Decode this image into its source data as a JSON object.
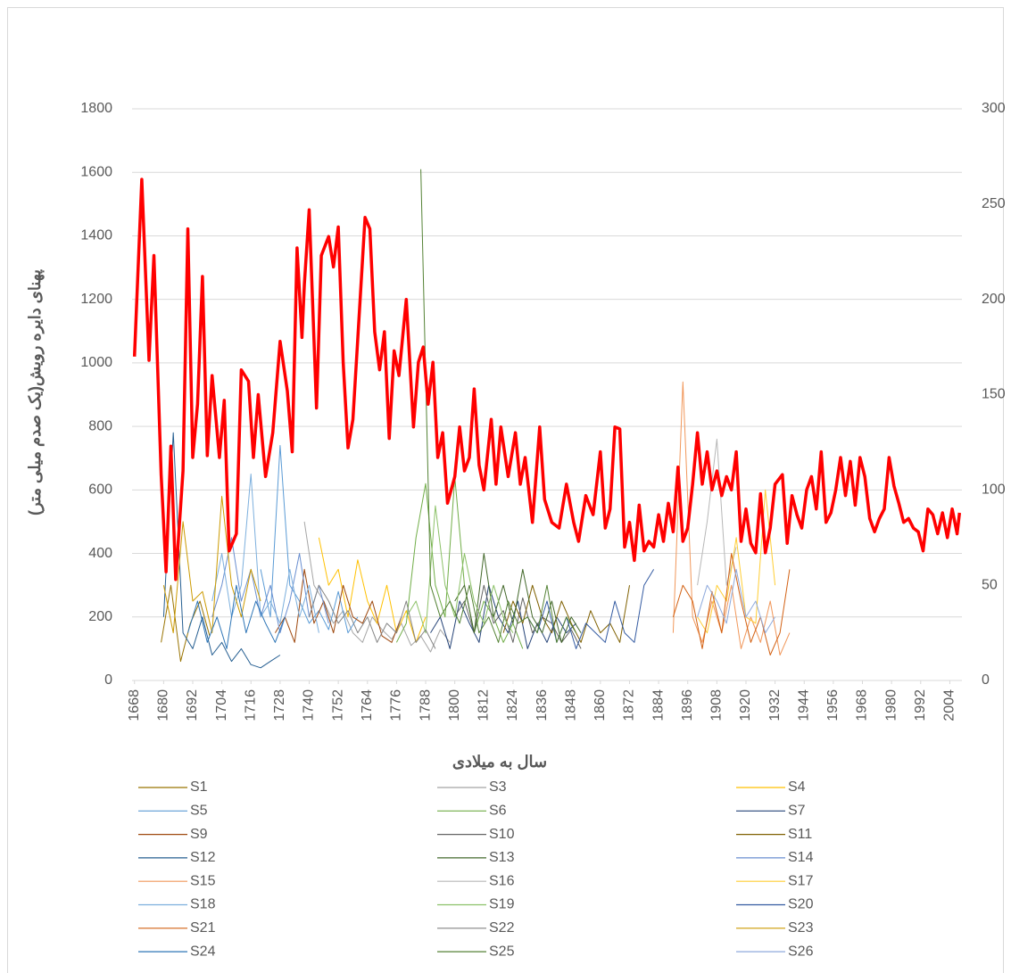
{
  "chart_data": {
    "type": "line",
    "y_label": "پهنای دایره رویش(یک صدم میلی متر)",
    "x_label": "سال به میلادی",
    "xlim": [
      1667,
      2009
    ],
    "xticks": [
      1668,
      1680,
      1692,
      1704,
      1716,
      1728,
      1740,
      1752,
      1764,
      1776,
      1788,
      1800,
      1812,
      1824,
      1836,
      1848,
      1860,
      1872,
      1884,
      1896,
      1908,
      1920,
      1932,
      1944,
      1956,
      1968,
      1980,
      1992,
      2004
    ],
    "ylim": [
      0,
      1800
    ],
    "yticks": [
      0,
      200,
      400,
      600,
      800,
      1000,
      1200,
      1400,
      1600,
      1800
    ],
    "y2lim": [
      0,
      300
    ],
    "y2ticks": [
      0,
      50,
      100,
      150,
      200,
      250,
      300
    ],
    "grid": true,
    "series": [
      {
        "name": "S1",
        "color": "#997300",
        "x": [
          1679,
          1683,
          1687,
          1691,
          1695,
          1699
        ],
        "values": [
          120,
          300,
          60,
          180,
          250,
          140
        ]
      },
      {
        "name": "S3",
        "color": "#a5a5a5",
        "x": [
          1738,
          1742,
          1746,
          1750,
          1754,
          1758,
          1762,
          1766,
          1770,
          1774,
          1778,
          1782,
          1786,
          1790,
          1794,
          1798
        ],
        "values": [
          500,
          300,
          250,
          180,
          220,
          150,
          120,
          200,
          160,
          130,
          180,
          110,
          140,
          90,
          160,
          120
        ]
      },
      {
        "name": "S4",
        "color": "#ffc000",
        "x": [
          1744,
          1748,
          1752,
          1756,
          1760,
          1764,
          1768,
          1772,
          1776,
          1780,
          1784,
          1788
        ],
        "values": [
          450,
          300,
          350,
          200,
          380,
          250,
          180,
          300,
          150,
          220,
          120,
          200
        ]
      },
      {
        "name": "S5",
        "color": "#5b9bd5",
        "x": [
          1720,
          1724,
          1728,
          1732,
          1736,
          1740,
          1744,
          1748,
          1752,
          1756,
          1760
        ],
        "values": [
          350,
          200,
          740,
          300,
          250,
          180,
          220,
          160,
          280,
          150,
          200
        ]
      },
      {
        "name": "S6",
        "color": "#70ad47",
        "x": [
          1776,
          1780,
          1784,
          1788,
          1792,
          1796,
          1800,
          1804,
          1808,
          1812,
          1816,
          1820,
          1824,
          1828
        ],
        "values": [
          120,
          180,
          450,
          620,
          300,
          200,
          640,
          300,
          150,
          250,
          200,
          120,
          180,
          100
        ]
      },
      {
        "name": "S7",
        "color": "#264478",
        "x": [
          1790,
          1794,
          1798,
          1802,
          1806,
          1810,
          1814,
          1818,
          1822,
          1826,
          1830,
          1834,
          1838,
          1842,
          1846,
          1850
        ],
        "values": [
          150,
          200,
          100,
          250,
          180,
          120,
          300,
          200,
          150,
          250,
          100,
          180,
          120,
          200,
          150,
          180
        ]
      },
      {
        "name": "S9",
        "color": "#9e480e",
        "x": [
          1726,
          1730,
          1734,
          1738,
          1742,
          1746,
          1750,
          1754,
          1758,
          1762,
          1766,
          1770,
          1774,
          1778
        ],
        "values": [
          150,
          200,
          120,
          350,
          180,
          250,
          150,
          300,
          200,
          180,
          250,
          140,
          120,
          200
        ]
      },
      {
        "name": "S10",
        "color": "#636363",
        "x": [
          1800,
          1804,
          1808,
          1812,
          1816,
          1820,
          1824,
          1828,
          1832,
          1836,
          1840,
          1844,
          1848,
          1852
        ],
        "values": [
          200,
          250,
          150,
          300,
          180,
          220,
          120,
          260,
          150,
          200,
          180,
          120,
          160,
          100
        ]
      },
      {
        "name": "S11",
        "color": "#7f6000",
        "x": [
          1820,
          1824,
          1828,
          1832,
          1836,
          1840,
          1844,
          1848,
          1852,
          1856,
          1860,
          1864,
          1868,
          1872
        ],
        "values": [
          150,
          250,
          180,
          300,
          200,
          150,
          250,
          180,
          120,
          220,
          150,
          180,
          120,
          300
        ]
      },
      {
        "name": "S12",
        "color": "#255e91",
        "x": [
          1680,
          1684,
          1688,
          1692,
          1696,
          1700,
          1704,
          1708,
          1712,
          1716,
          1720,
          1724,
          1728
        ],
        "values": [
          200,
          780,
          150,
          100,
          200,
          80,
          120,
          60,
          100,
          50,
          40,
          60,
          80
        ]
      },
      {
        "name": "S13",
        "color": "#43682b",
        "x": [
          1800,
          1804,
          1808,
          1812,
          1816,
          1820,
          1824,
          1828,
          1832,
          1836,
          1840,
          1844,
          1848,
          1852
        ],
        "values": [
          250,
          300,
          150,
          400,
          200,
          300,
          180,
          350,
          200,
          150,
          250,
          120,
          200,
          150
        ]
      },
      {
        "name": "S14",
        "color": "#698ed0",
        "x": [
          1700,
          1704,
          1708,
          1712,
          1716,
          1720,
          1724,
          1728,
          1732,
          1736,
          1740,
          1744,
          1748
        ],
        "values": [
          200,
          300,
          450,
          250,
          350,
          200,
          300,
          150,
          250,
          400,
          200,
          300,
          180
        ]
      },
      {
        "name": "S15",
        "color": "#f1975a",
        "x": [
          1890,
          1894,
          1898,
          1902,
          1906,
          1910,
          1914,
          1918,
          1922,
          1926,
          1930,
          1934,
          1938
        ],
        "values": [
          150,
          940,
          200,
          120,
          250,
          150,
          300,
          100,
          200,
          120,
          250,
          80,
          150
        ]
      },
      {
        "name": "S16",
        "color": "#b7b7b7",
        "x": [
          1900,
          1904,
          1908,
          1912,
          1916
        ],
        "values": [
          300,
          500,
          760,
          300,
          420
        ]
      },
      {
        "name": "S17",
        "color": "#ffcd33",
        "x": [
          1900,
          1904,
          1908,
          1912,
          1916,
          1920,
          1924,
          1928,
          1932
        ],
        "values": [
          200,
          150,
          300,
          250,
          450,
          200,
          180,
          600,
          300
        ]
      },
      {
        "name": "S18",
        "color": "#7cafdd",
        "x": [
          1700,
          1704,
          1708,
          1712,
          1716,
          1720,
          1724,
          1728,
          1732,
          1736,
          1740,
          1744
        ],
        "values": [
          250,
          400,
          200,
          300,
          650,
          200,
          250,
          180,
          350,
          200,
          300,
          150
        ]
      },
      {
        "name": "S19",
        "color": "#8cc168",
        "x": [
          1780,
          1784,
          1788,
          1792,
          1796,
          1800,
          1804,
          1808,
          1812,
          1816,
          1820,
          1824
        ],
        "values": [
          200,
          250,
          150,
          550,
          300,
          200,
          400,
          250,
          180,
          300,
          200,
          150
        ]
      },
      {
        "name": "S20",
        "color": "#335aa1",
        "x": [
          1830,
          1834,
          1838,
          1842,
          1846,
          1850,
          1854,
          1858,
          1862,
          1866,
          1870,
          1874,
          1878,
          1882
        ],
        "values": [
          200,
          150,
          250,
          120,
          200,
          100,
          180,
          150,
          120,
          250,
          150,
          120,
          300,
          350
        ]
      },
      {
        "name": "S21",
        "color": "#d26012",
        "x": [
          1890,
          1894,
          1898,
          1902,
          1906,
          1910,
          1914,
          1918,
          1922,
          1926,
          1930,
          1934,
          1938
        ],
        "values": [
          200,
          300,
          250,
          100,
          280,
          150,
          400,
          250,
          120,
          200,
          80,
          150,
          350
        ]
      },
      {
        "name": "S22",
        "color": "#848484",
        "x": [
          1740,
          1744,
          1748,
          1752,
          1756,
          1760,
          1764,
          1768,
          1772,
          1776,
          1780,
          1784,
          1788,
          1792
        ],
        "values": [
          200,
          300,
          250,
          180,
          220,
          150,
          200,
          120,
          180,
          150,
          250,
          120,
          160,
          100
        ]
      },
      {
        "name": "S23",
        "color": "#cc9a00",
        "x": [
          1680,
          1684,
          1688,
          1692,
          1696,
          1700,
          1704,
          1708,
          1712,
          1716,
          1720
        ],
        "values": [
          300,
          150,
          500,
          250,
          280,
          150,
          580,
          300,
          200,
          350,
          250
        ]
      },
      {
        "name": "S24",
        "color": "#2e75b6",
        "x": [
          1690,
          1694,
          1698,
          1702,
          1706,
          1710,
          1714,
          1718,
          1722,
          1726,
          1730
        ],
        "values": [
          150,
          250,
          120,
          200,
          100,
          300,
          150,
          250,
          180,
          120,
          200
        ]
      },
      {
        "name": "S25",
        "color": "#548235",
        "x": [
          1786,
          1790,
          1794,
          1798,
          1802,
          1806,
          1810,
          1814,
          1818,
          1822,
          1826,
          1830,
          1834,
          1838,
          1842,
          1846,
          1850
        ],
        "values": [
          1610,
          300,
          200,
          250,
          180,
          300,
          150,
          200,
          120,
          250,
          180,
          200,
          150,
          300,
          120,
          200,
          150
        ]
      },
      {
        "name": "S26",
        "color": "#8faadc",
        "x": [
          1900,
          1904,
          1908,
          1912,
          1916,
          1920,
          1924,
          1928,
          1932
        ],
        "values": [
          200,
          300,
          250,
          180,
          350,
          200,
          250,
          150,
          200
        ]
      },
      {
        "color": "#ff0000",
        "axis": "y2",
        "x": [
          1668,
          1671,
          1674,
          1676,
          1679,
          1681,
          1683,
          1685,
          1688,
          1690,
          1692,
          1694,
          1696,
          1698,
          1700,
          1703,
          1705,
          1707,
          1710,
          1712,
          1715,
          1717,
          1719,
          1722,
          1725,
          1728,
          1731,
          1733,
          1735,
          1737,
          1738,
          1740,
          1743,
          1745,
          1748,
          1750,
          1752,
          1754,
          1756,
          1758,
          1761,
          1763,
          1765,
          1767,
          1769,
          1771,
          1773,
          1775,
          1777,
          1780,
          1783,
          1785,
          1787,
          1789,
          1791,
          1793,
          1795,
          1797,
          1800,
          1802,
          1804,
          1806,
          1808,
          1810,
          1812,
          1815,
          1817,
          1819,
          1822,
          1825,
          1827,
          1829,
          1832,
          1835,
          1837,
          1840,
          1843,
          1846,
          1849,
          1851,
          1854,
          1857,
          1860,
          1862,
          1864,
          1866,
          1868,
          1870,
          1872,
          1874,
          1876,
          1878,
          1880,
          1882,
          1884,
          1886,
          1888,
          1890,
          1892,
          1894,
          1896,
          1898,
          1900,
          1902,
          1904,
          1906,
          1908,
          1910,
          1912,
          1914,
          1916,
          1918,
          1920,
          1922,
          1924,
          1926,
          1928,
          1930,
          1932,
          1935,
          1937,
          1939,
          1941,
          1943,
          1945,
          1947,
          1949,
          1951,
          1953,
          1955,
          1957,
          1959,
          1961,
          1963,
          1965,
          1967,
          1969,
          1971,
          1973,
          1975,
          1977,
          1979,
          1981,
          1983,
          1985,
          1987,
          1989,
          1991,
          1993,
          1995,
          1997,
          1999,
          2001,
          2003,
          2005,
          2007,
          2008
        ],
        "values": [
          170,
          263,
          168,
          223,
          108,
          57,
          123,
          53,
          110,
          237,
          117,
          145,
          212,
          118,
          160,
          117,
          147,
          68,
          77,
          163,
          157,
          117,
          150,
          107,
          130,
          178,
          152,
          120,
          227,
          180,
          208,
          247,
          143,
          223,
          233,
          217,
          238,
          167,
          122,
          137,
          200,
          243,
          237,
          183,
          163,
          183,
          127,
          173,
          160,
          200,
          133,
          167,
          175,
          145,
          167,
          117,
          130,
          93,
          107,
          133,
          110,
          117,
          153,
          113,
          100,
          137,
          103,
          133,
          107,
          130,
          103,
          117,
          83,
          133,
          95,
          83,
          80,
          103,
          83,
          73,
          97,
          87,
          120,
          80,
          90,
          133,
          132,
          70,
          83,
          63,
          92,
          68,
          73,
          70,
          87,
          73,
          93,
          78,
          112,
          73,
          80,
          103,
          130,
          103,
          120,
          100,
          110,
          97,
          107,
          100,
          120,
          73,
          90,
          72,
          67,
          98,
          67,
          80,
          103,
          108,
          72,
          97,
          87,
          80,
          100,
          107,
          90,
          120,
          83,
          88,
          100,
          117,
          97,
          115,
          92,
          117,
          107,
          85,
          78,
          85,
          90,
          117,
          102,
          93,
          83,
          85,
          80,
          78,
          68,
          90,
          87,
          77,
          88,
          75,
          90,
          77,
          88
        ]
      }
    ]
  }
}
